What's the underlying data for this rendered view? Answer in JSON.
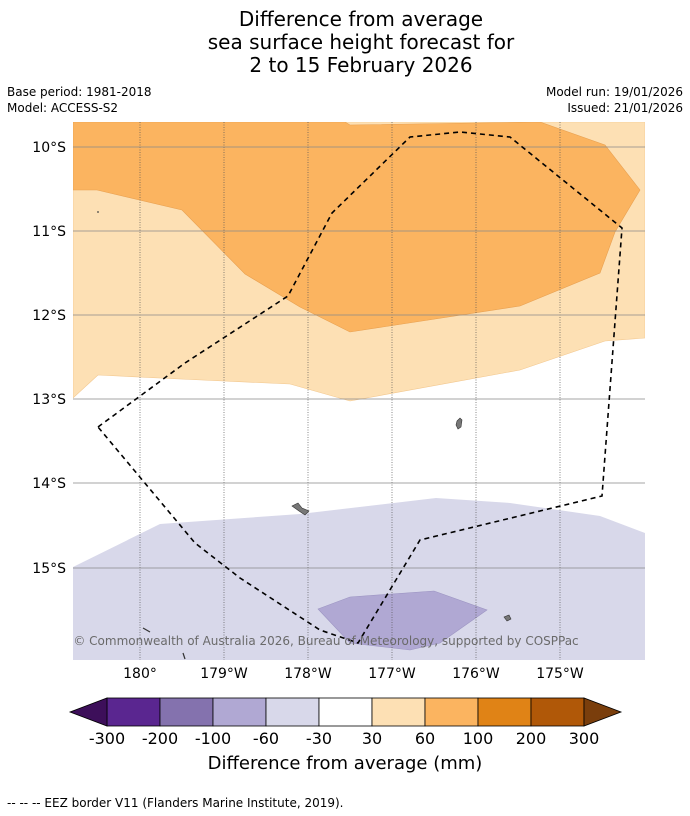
{
  "title": {
    "line1": "Difference from average",
    "line2": "sea surface height forecast for",
    "line3": "2 to 15 February 2026"
  },
  "meta": {
    "base_period": "Base period: 1981-2018",
    "model": "Model: ACCESS-S2",
    "model_run": "Model run: 19/01/2026",
    "issued": "Issued: 21/01/2026"
  },
  "map": {
    "lat_labels": [
      "10°S",
      "11°S",
      "12°S",
      "13°S",
      "14°S",
      "15°S"
    ],
    "lon_labels": [
      "180°",
      "179°W",
      "178°W",
      "177°W",
      "176°W",
      "175°W"
    ],
    "copyright": "© Commonwealth of Australia 2026, Bureau of Meteorology, supported by COSPPac"
  },
  "colorbar": {
    "label": "Difference from average (mm)",
    "ticks": [
      "-300",
      "-200",
      "-100",
      "-60",
      "-30",
      "30",
      "60",
      "100",
      "200",
      "300"
    ],
    "colors": {
      "lt_-300": "#3d0f5a",
      "-300_-200": "#5a2690",
      "-200_-100": "#8472ae",
      "-100_-60": "#b0a8d3",
      "-60_-30": "#d8d8ea",
      "-30_30": "#ffffff",
      "30_60": "#fde0b4",
      "60_100": "#fbb460",
      "100_200": "#e08316",
      "200_300": "#b05808",
      "gt_300": "#7a3e0c"
    }
  },
  "footer": {
    "legend_line": "--  --  -- EEZ border V11 (Flanders Marine Institute, 2019)."
  }
}
